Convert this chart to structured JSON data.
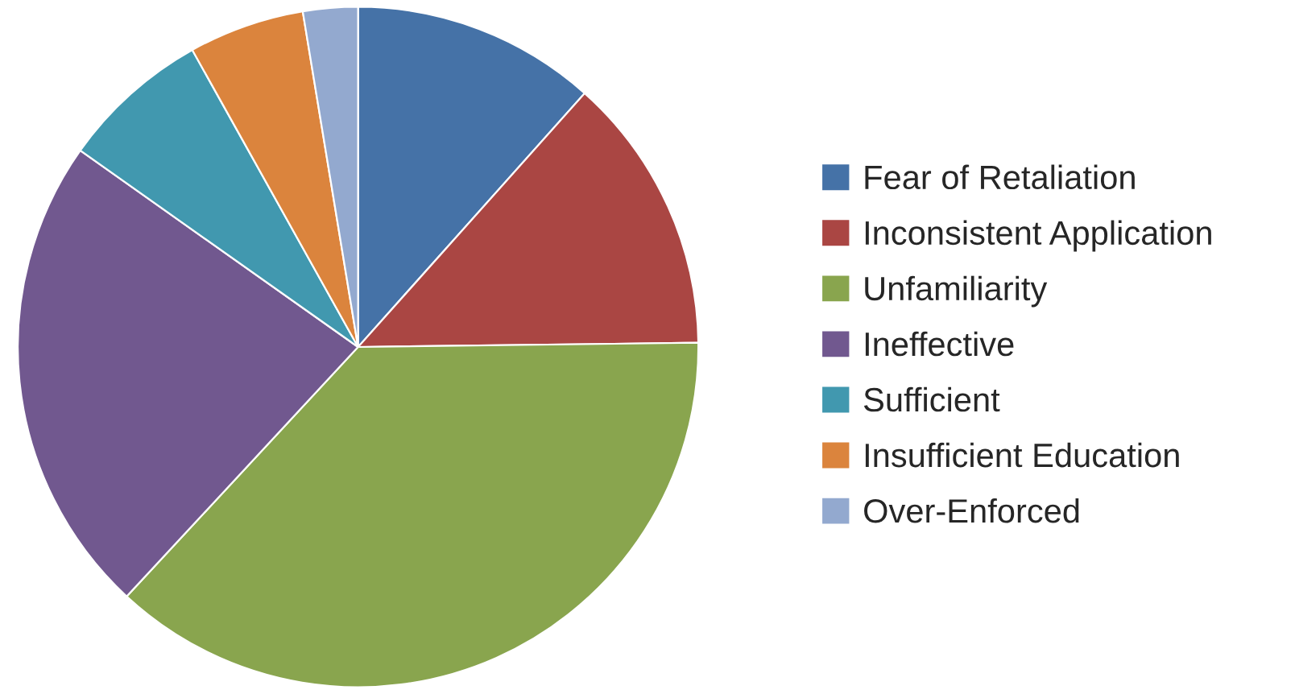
{
  "chart_data": {
    "type": "pie",
    "categories": [
      "Fear of Retaliation",
      "Inconsistent Application",
      "Unfamiliarity",
      "Ineffective",
      "Sufficient",
      "Insufficient Education",
      "Over-Enforced"
    ],
    "values": [
      11.6,
      13.2,
      37.1,
      22.9,
      7.1,
      5.5,
      2.6
    ],
    "colors": [
      "#4572a7",
      "#aa4643",
      "#89a54e",
      "#71588f",
      "#4198af",
      "#db843d",
      "#93a9cf"
    ],
    "legend": "right"
  }
}
